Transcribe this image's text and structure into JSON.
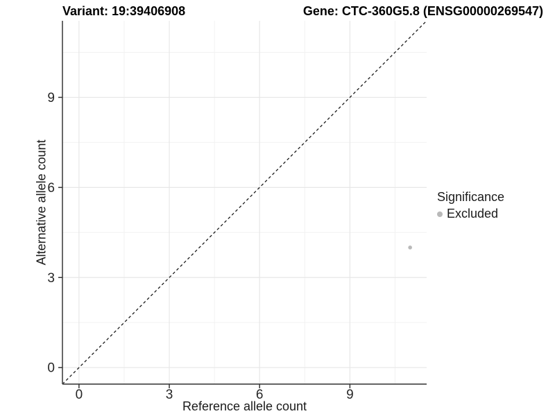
{
  "figure": {
    "title_left": "Variant: 19:39406908",
    "title_right": "Gene: CTC-360G5.8 (ENSG00000269547)",
    "legend": {
      "title": "Significance",
      "items": [
        {
          "label": "Excluded",
          "color": "#b9b9b9"
        }
      ]
    }
  },
  "chart_data": {
    "type": "scatter",
    "title": "Variant: 19:39406908",
    "subtitle": "Gene: CTC-360G5.8 (ENSG00000269547)",
    "xlabel": "Reference allele count",
    "ylabel": "Alternative allele count",
    "xlim": [
      -0.55,
      11.55
    ],
    "ylim": [
      -0.55,
      11.55
    ],
    "x_ticks": [
      0,
      3,
      6,
      9
    ],
    "y_ticks": [
      0,
      3,
      6,
      9
    ],
    "x_minor_ticks": [
      1.5,
      4.5,
      7.5,
      10.5
    ],
    "y_minor_ticks": [
      1.5,
      4.5,
      7.5,
      10.5
    ],
    "grid": true,
    "legend_position": "right",
    "legend_title": "Significance",
    "series": [
      {
        "name": "Excluded",
        "color": "#b9b9b9",
        "points": [
          {
            "x": 11,
            "y": 4
          }
        ]
      }
    ],
    "reference_line": {
      "type": "identity",
      "style": "dashed",
      "from": [
        -0.55,
        -0.55
      ],
      "to": [
        11.55,
        11.55
      ],
      "color": "#1a1a1a"
    },
    "colors": {
      "grid_major": "#e7e7e7",
      "grid_minor": "#f2f2f2",
      "axis_line": "#4d4d4d",
      "tick_mark": "#333333",
      "tick_label": "#262626",
      "background": "#ffffff"
    }
  }
}
